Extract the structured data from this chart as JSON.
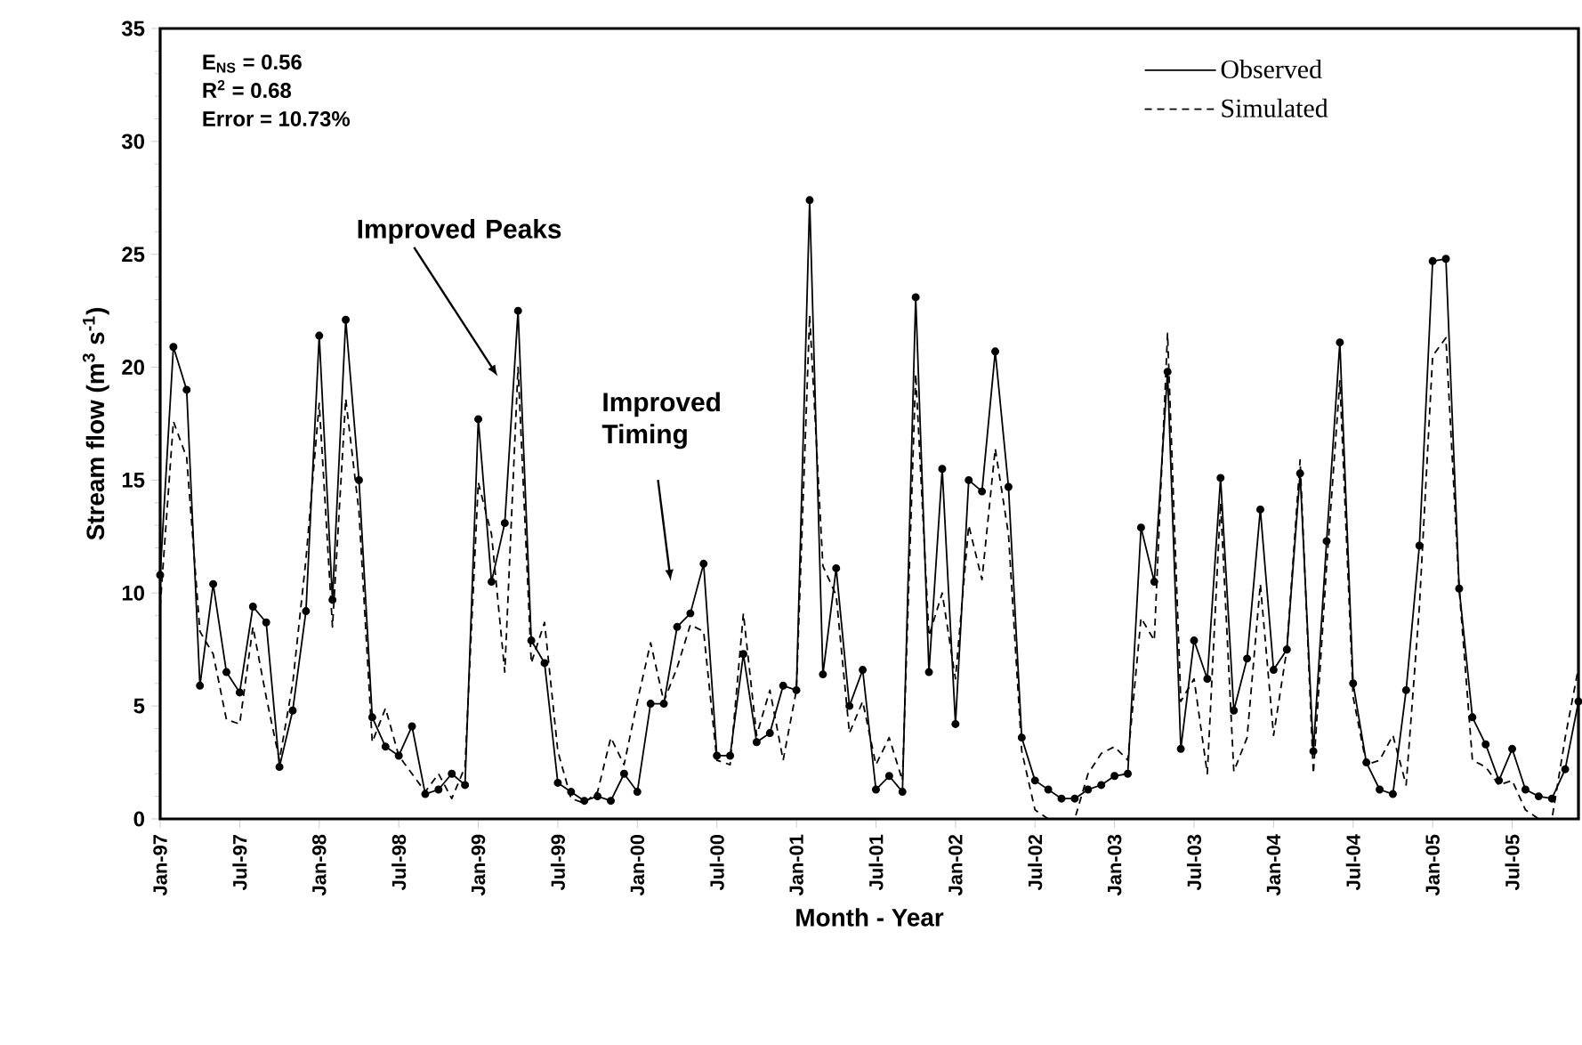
{
  "chart_data": {
    "type": "line",
    "xlabel": "Month - Year",
    "ylabel": "Stream flow (m$^{3}$ s$^{-1}$)",
    "x": [
      "1997-01",
      "1997-02",
      "1997-03",
      "1997-04",
      "1997-05",
      "1997-06",
      "1997-07",
      "1997-08",
      "1997-09",
      "1997-10",
      "1997-11",
      "1997-12",
      "1998-01",
      "1998-02",
      "1998-03",
      "1998-04",
      "1998-05",
      "1998-06",
      "1998-07",
      "1998-08",
      "1998-09",
      "1998-10",
      "1998-11",
      "1998-12",
      "1999-01",
      "1999-02",
      "1999-03",
      "1999-04",
      "1999-05",
      "1999-06",
      "1999-07",
      "1999-08",
      "1999-09",
      "1999-10",
      "1999-11",
      "1999-12",
      "2000-01",
      "2000-02",
      "2000-03",
      "2000-04",
      "2000-05",
      "2000-06",
      "2000-07",
      "2000-08",
      "2000-09",
      "2000-10",
      "2000-11",
      "2000-12",
      "2001-01",
      "2001-02",
      "2001-03",
      "2001-04",
      "2001-05",
      "2001-06",
      "2001-07",
      "2001-08",
      "2001-09",
      "2001-10",
      "2001-11",
      "2001-12",
      "2002-01",
      "2002-02",
      "2002-03",
      "2002-04",
      "2002-05",
      "2002-06",
      "2002-07",
      "2002-08",
      "2002-09",
      "2002-10",
      "2002-11",
      "2002-12",
      "2003-01",
      "2003-02",
      "2003-03",
      "2003-04",
      "2003-05",
      "2003-06",
      "2003-07",
      "2003-08",
      "2003-09",
      "2003-10",
      "2003-11",
      "2003-12",
      "2004-01",
      "2004-02",
      "2004-03",
      "2004-04",
      "2004-05",
      "2004-06",
      "2004-07",
      "2004-08",
      "2004-09",
      "2004-10",
      "2004-11",
      "2004-12",
      "2005-01",
      "2005-02",
      "2005-03",
      "2005-04",
      "2005-05",
      "2005-06",
      "2005-07",
      "2005-08",
      "2005-09",
      "2005-10",
      "2005-11",
      "2005-12"
    ],
    "series": [
      {
        "name": "Observed",
        "color": "#000000",
        "line_style": "solid",
        "marker": "circle",
        "values": [
          10.8,
          20.9,
          19.0,
          5.9,
          10.4,
          6.5,
          5.6,
          9.4,
          8.7,
          2.3,
          4.8,
          9.2,
          21.4,
          9.7,
          22.1,
          15.0,
          4.5,
          3.2,
          2.8,
          4.1,
          1.1,
          1.3,
          2.0,
          1.5,
          17.7,
          10.5,
          13.1,
          22.5,
          7.9,
          6.9,
          1.6,
          1.2,
          0.8,
          1.0,
          0.8,
          2.0,
          1.2,
          5.1,
          5.1,
          8.5,
          9.1,
          11.3,
          2.8,
          2.8,
          7.3,
          3.4,
          3.8,
          5.9,
          5.7,
          27.4,
          6.4,
          11.1,
          5.0,
          6.6,
          1.3,
          1.9,
          1.2,
          23.1,
          6.5,
          15.5,
          4.2,
          15.0,
          14.5,
          20.7,
          14.7,
          3.6,
          1.7,
          1.3,
          0.9,
          0.9,
          1.3,
          1.5,
          1.9,
          2.0,
          12.9,
          10.5,
          19.8,
          3.1,
          7.9,
          6.2,
          15.1,
          4.8,
          7.1,
          13.7,
          6.6,
          7.5,
          15.3,
          3.0,
          12.3,
          21.1,
          6.0,
          2.5,
          1.3,
          1.1,
          5.7,
          12.1,
          24.7,
          24.8,
          10.2,
          4.5,
          3.3,
          1.7,
          3.1,
          1.3,
          1.0,
          0.9,
          2.2,
          5.2
        ]
      },
      {
        "name": "Simulated",
        "color": "#000000",
        "line_style": "dashed",
        "marker": "none",
        "values": [
          9.4,
          17.6,
          16.0,
          8.3,
          7.3,
          4.4,
          4.2,
          8.5,
          5.4,
          2.6,
          6.0,
          11.5,
          18.4,
          8.5,
          18.6,
          13.6,
          3.4,
          4.9,
          2.8,
          2.0,
          1.2,
          2.0,
          0.9,
          2.3,
          14.9,
          12.6,
          6.5,
          20.0,
          6.9,
          8.7,
          3.0,
          0.9,
          0.7,
          1.2,
          3.6,
          2.4,
          5.2,
          7.8,
          5.2,
          6.7,
          8.6,
          8.3,
          2.6,
          2.4,
          9.1,
          3.7,
          5.7,
          2.6,
          5.7,
          22.3,
          11.2,
          9.9,
          3.8,
          5.2,
          2.4,
          3.6,
          1.7,
          19.7,
          8.1,
          10.0,
          6.2,
          13.0,
          10.6,
          16.4,
          12.6,
          3.0,
          0.4,
          0,
          0,
          0,
          2.0,
          2.9,
          3.2,
          2.6,
          8.9,
          7.9,
          21.5,
          5.2,
          6.2,
          2.0,
          14.0,
          2.1,
          3.6,
          10.4,
          3.7,
          7.5,
          15.9,
          2.0,
          11.2,
          19.4,
          5.4,
          2.4,
          2.6,
          3.7,
          1.5,
          9.4,
          20.5,
          21.3,
          10.2,
          2.6,
          2.3,
          1.5,
          1.7,
          0.4,
          0,
          0,
          3.6,
          6.7
        ]
      }
    ],
    "xlim": [
      "1997-01",
      "2005-12"
    ],
    "xticks": [
      {
        "value": "1997-01",
        "label": "Jan-97"
      },
      {
        "value": "1997-07",
        "label": "Jul-97"
      },
      {
        "value": "1998-01",
        "label": "Jan-98"
      },
      {
        "value": "1998-07",
        "label": "Jul-98"
      },
      {
        "value": "1999-01",
        "label": "Jan-99"
      },
      {
        "value": "1999-07",
        "label": "Jul-99"
      },
      {
        "value": "2000-01",
        "label": "Jan-00"
      },
      {
        "value": "2000-07",
        "label": "Jul-00"
      },
      {
        "value": "2001-01",
        "label": "Jan-01"
      },
      {
        "value": "2001-07",
        "label": "Jul-01"
      },
      {
        "value": "2002-01",
        "label": "Jan-02"
      },
      {
        "value": "2002-07",
        "label": "Jul-02"
      },
      {
        "value": "2003-01",
        "label": "Jan-03"
      },
      {
        "value": "2003-07",
        "label": "Jul-03"
      },
      {
        "value": "2004-01",
        "label": "Jan-04"
      },
      {
        "value": "2004-07",
        "label": "Jul-04"
      },
      {
        "value": "2005-01",
        "label": "Jan-05"
      },
      {
        "value": "2005-07",
        "label": "Jul-05"
      }
    ],
    "ylim": [
      0,
      35
    ],
    "yticks": [
      0,
      5,
      10,
      15,
      20,
      25,
      30,
      35
    ],
    "grid": false,
    "legend": "top right",
    "annotations": [
      "E$_{NS}$ = 0.56",
      "R$^{2}$ = 0.68",
      "Error  = 10.73%",
      "Improved Peaks",
      "Improved Timing"
    ]
  }
}
